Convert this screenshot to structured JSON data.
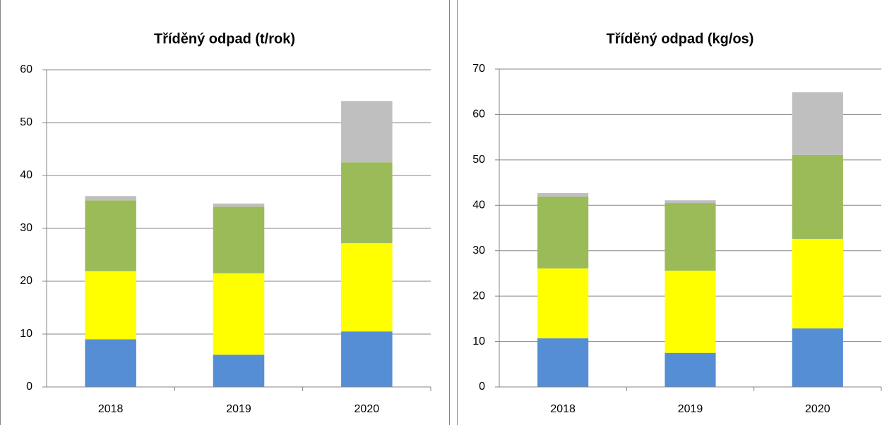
{
  "chart_data": [
    {
      "type": "stacked_bar",
      "title": "Tříděný odpad (t/rok)",
      "categories": [
        "2018",
        "2019",
        "2020"
      ],
      "series": [
        {
          "color": "#558ed5",
          "values": [
            9.0,
            6.1,
            10.5
          ]
        },
        {
          "color": "#ffff00",
          "values": [
            12.9,
            15.4,
            16.7
          ]
        },
        {
          "color": "#9bbb59",
          "values": [
            13.4,
            12.6,
            15.3
          ]
        },
        {
          "color": "#bfbfbf",
          "values": [
            0.8,
            0.6,
            11.6
          ]
        }
      ],
      "ylim": [
        0,
        60
      ],
      "yticks": [
        0,
        10,
        20,
        30,
        40,
        50,
        60
      ],
      "grid": true
    },
    {
      "type": "stacked_bar",
      "title": "Tříděný odpad (kg/os)",
      "categories": [
        "2018",
        "2019",
        "2020"
      ],
      "series": [
        {
          "color": "#558ed5",
          "values": [
            10.7,
            7.5,
            12.9
          ]
        },
        {
          "color": "#ffff00",
          "values": [
            15.4,
            18.1,
            19.7
          ]
        },
        {
          "color": "#9bbb59",
          "values": [
            15.8,
            14.9,
            18.5
          ]
        },
        {
          "color": "#bfbfbf",
          "values": [
            0.8,
            0.6,
            13.8
          ]
        }
      ],
      "ylim": [
        0,
        70
      ],
      "yticks": [
        0,
        10,
        20,
        30,
        40,
        50,
        60,
        70
      ],
      "grid": true
    }
  ]
}
